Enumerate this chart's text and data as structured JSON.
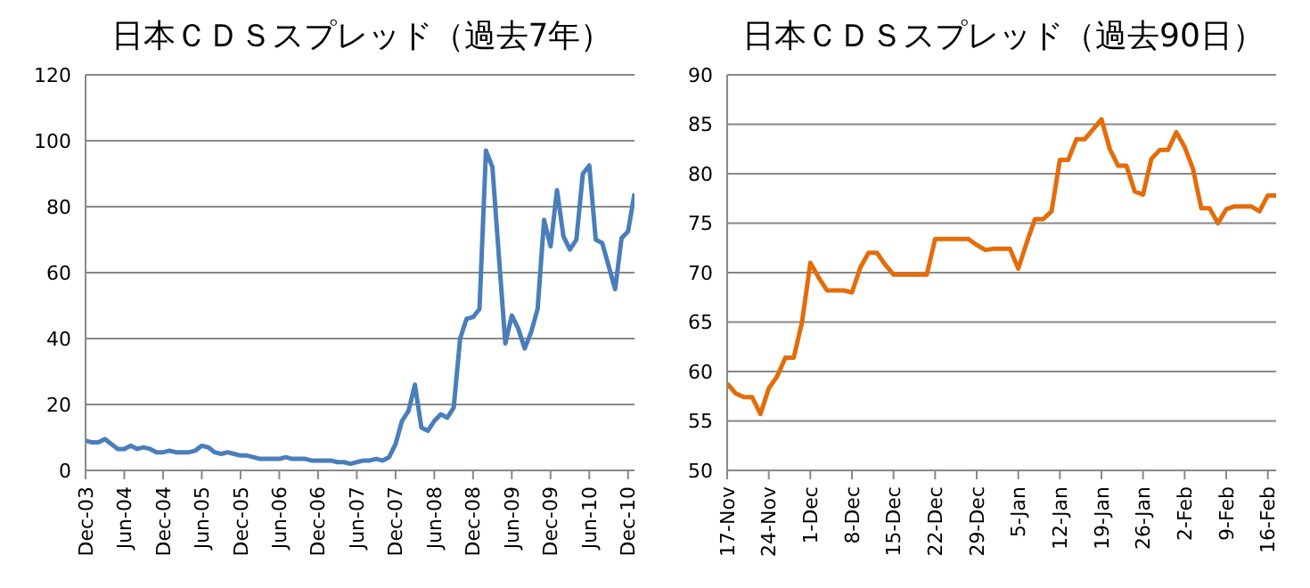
{
  "chart_data": [
    {
      "type": "line",
      "title": "日本ＣＤＳスプレッド（過去7年）",
      "grid": "y",
      "x": [
        "2003-12",
        "2004-01",
        "2004-02",
        "2004-03",
        "2004-04",
        "2004-05",
        "2004-06",
        "2004-07",
        "2004-08",
        "2004-09",
        "2004-10",
        "2004-11",
        "2004-12",
        "2005-01",
        "2005-02",
        "2005-03",
        "2005-04",
        "2005-05",
        "2005-06",
        "2005-07",
        "2005-08",
        "2005-09",
        "2005-10",
        "2005-11",
        "2005-12",
        "2006-01",
        "2006-02",
        "2006-03",
        "2006-04",
        "2006-05",
        "2006-06",
        "2006-07",
        "2006-08",
        "2006-09",
        "2006-10",
        "2006-11",
        "2006-12",
        "2007-01",
        "2007-02",
        "2007-03",
        "2007-04",
        "2007-05",
        "2007-06",
        "2007-07",
        "2007-08",
        "2007-09",
        "2007-10",
        "2007-11",
        "2007-12",
        "2008-01",
        "2008-02",
        "2008-03",
        "2008-04",
        "2008-05",
        "2008-06",
        "2008-07",
        "2008-08",
        "2008-09",
        "2008-10",
        "2008-11",
        "2008-12",
        "2009-01",
        "2009-02",
        "2009-03",
        "2009-04",
        "2009-05",
        "2009-06",
        "2009-07",
        "2009-08",
        "2009-09",
        "2009-10",
        "2009-11",
        "2009-12",
        "2010-01",
        "2010-02",
        "2010-03",
        "2010-04",
        "2010-05",
        "2010-06",
        "2010-07",
        "2010-08",
        "2010-09",
        "2010-10",
        "2010-11",
        "2010-12",
        "2011-01"
      ],
      "series": [
        {
          "color": "#4a7ebb",
          "values": [
            9,
            8.5,
            8.5,
            9.5,
            8,
            6.5,
            6.5,
            7.5,
            6.5,
            7,
            6.5,
            5.5,
            5.5,
            6,
            5.5,
            5.5,
            5.5,
            6,
            7.5,
            7,
            5.5,
            5,
            5.5,
            5,
            4.5,
            4.5,
            4,
            3.5,
            3.5,
            3.5,
            3.5,
            4,
            3.5,
            3.5,
            3.5,
            3,
            3,
            3,
            3,
            2.5,
            2.5,
            2,
            2.5,
            3,
            3,
            3.5,
            3,
            4,
            8,
            15,
            18,
            26,
            13,
            12,
            15,
            17,
            16,
            19,
            40,
            46,
            46.5,
            49,
            97,
            92,
            65,
            38.5,
            47,
            43,
            37,
            42,
            49,
            76,
            68,
            85,
            71,
            67,
            70,
            90,
            92.5,
            70,
            69,
            62,
            55,
            70.5,
            72.5,
            84
          ]
        }
      ],
      "xlim": [
        "2003-12",
        "2011-01"
      ],
      "xticks": [
        {
          "value": "2003-12",
          "label": "Dec-03"
        },
        {
          "value": "2004-06",
          "label": "Jun-04"
        },
        {
          "value": "2004-12",
          "label": "Dec-04"
        },
        {
          "value": "2005-06",
          "label": "Jun-05"
        },
        {
          "value": "2005-12",
          "label": "Dec-05"
        },
        {
          "value": "2006-06",
          "label": "Jun-06"
        },
        {
          "value": "2006-12",
          "label": "Dec-06"
        },
        {
          "value": "2007-06",
          "label": "Jun-07"
        },
        {
          "value": "2007-12",
          "label": "Dec-07"
        },
        {
          "value": "2008-06",
          "label": "Jun-08"
        },
        {
          "value": "2008-12",
          "label": "Dec-08"
        },
        {
          "value": "2009-06",
          "label": "Jun-09"
        },
        {
          "value": "2009-12",
          "label": "Dec-09"
        },
        {
          "value": "2010-06",
          "label": "Jun-10"
        },
        {
          "value": "2010-12",
          "label": "Dec-10"
        }
      ],
      "ylim": [
        0,
        120
      ],
      "yticks": [
        0,
        20,
        40,
        60,
        80,
        100,
        120
      ]
    },
    {
      "type": "line",
      "title": "日本ＣＤＳスプレッド（過去90日）",
      "grid": "y",
      "categories": [
        "17-Nov",
        null,
        null,
        null,
        null,
        "24-Nov",
        null,
        null,
        null,
        null,
        "1-Dec",
        null,
        null,
        null,
        null,
        "8-Dec",
        null,
        null,
        null,
        null,
        "15-Dec",
        null,
        null,
        null,
        null,
        "22-Dec",
        null,
        null,
        null,
        null,
        "29-Dec",
        null,
        null,
        null,
        null,
        "5-Jan",
        null,
        null,
        null,
        null,
        "12-Jan",
        null,
        null,
        null,
        null,
        "19-Jan",
        null,
        null,
        null,
        null,
        "26-Jan",
        null,
        null,
        null,
        null,
        "2-Feb",
        null,
        null,
        null,
        null,
        "9-Feb",
        null,
        null,
        null,
        null,
        "16-Feb",
        null
      ],
      "series": [
        {
          "color": "#e46c0a",
          "values": [
            58.8,
            57.8,
            57.4,
            57.4,
            55.7,
            58.3,
            59.5,
            61.4,
            61.4,
            65,
            71,
            69.5,
            68.2,
            68.2,
            68.2,
            68,
            70.5,
            72,
            72,
            70.8,
            69.8,
            69.8,
            69.8,
            69.8,
            69.8,
            73.4,
            73.4,
            73.4,
            73.4,
            73.4,
            72.8,
            72.3,
            72.4,
            72.4,
            72.4,
            70.4,
            73,
            75.4,
            75.4,
            76.2,
            81.4,
            81.4,
            83.5,
            83.5,
            84.5,
            85.5,
            82.5,
            80.8,
            80.8,
            78.2,
            77.9,
            81.5,
            82.4,
            82.4,
            84.2,
            82.7,
            80.5,
            76.5,
            76.5,
            75,
            76.4,
            76.7,
            76.7,
            76.7,
            76.2,
            77.8,
            77.8
          ]
        }
      ],
      "ylim": [
        50,
        90
      ],
      "yticks": [
        50,
        55,
        60,
        65,
        70,
        75,
        80,
        85,
        90
      ]
    }
  ]
}
